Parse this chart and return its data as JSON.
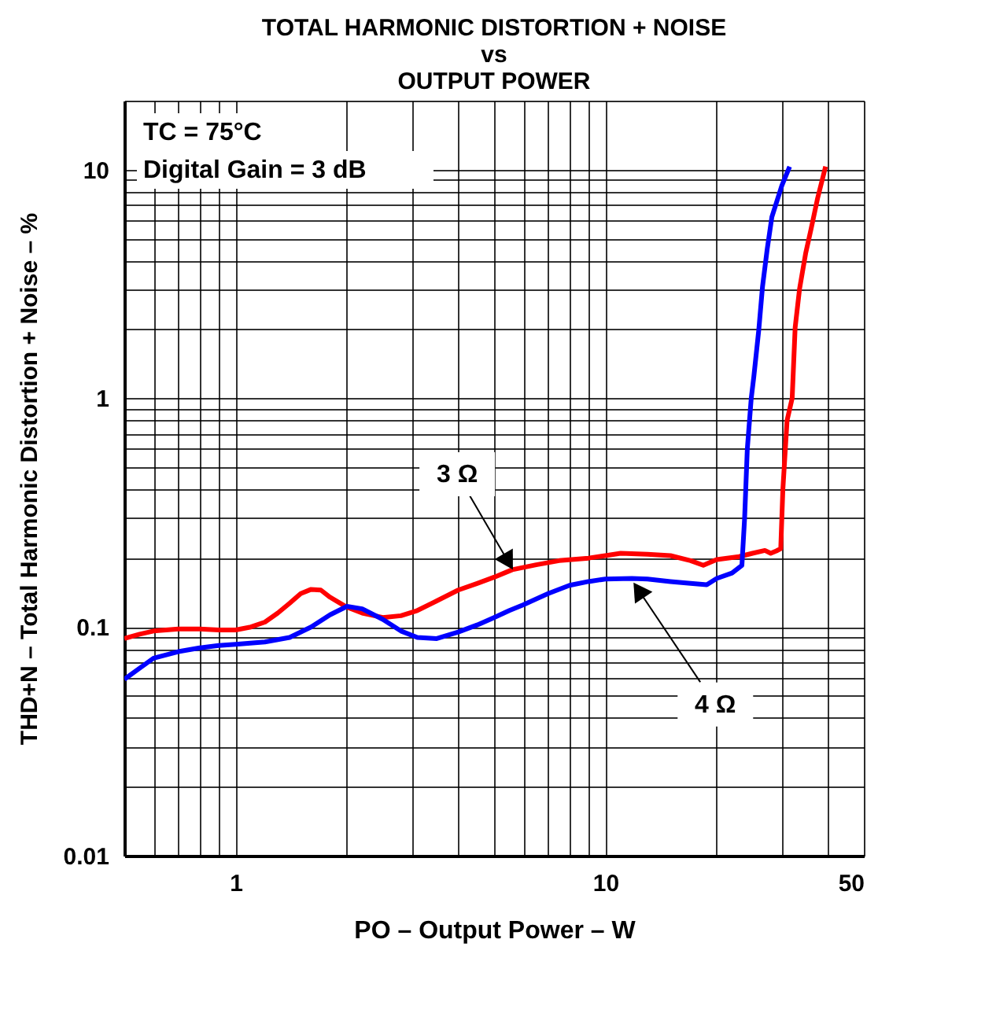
{
  "chart_data": {
    "type": "line",
    "title": "TOTAL HARMONIC DISTORTION + NOISE\nvs\nOUTPUT POWER",
    "xlabel": "PO – Output Power – W",
    "ylabel": "THD+N – Total Harmonic Distortion + Noise – %",
    "log": "xy",
    "grid": true,
    "xlim": [
      0.5,
      50
    ],
    "ylim": [
      0.01,
      20
    ],
    "xticks": [
      {
        "value": 0.5,
        "label": null
      },
      {
        "value": 0.6,
        "label": null
      },
      {
        "value": 0.7,
        "label": null
      },
      {
        "value": 0.8,
        "label": null
      },
      {
        "value": 0.9,
        "label": null
      },
      1,
      {
        "value": 2,
        "label": null
      },
      {
        "value": 3,
        "label": null
      },
      {
        "value": 4,
        "label": null
      },
      {
        "value": 5,
        "label": null
      },
      {
        "value": 6,
        "label": null
      },
      {
        "value": 7,
        "label": null
      },
      {
        "value": 8,
        "label": null
      },
      {
        "value": 9,
        "label": null
      },
      10,
      {
        "value": 20,
        "label": null
      },
      {
        "value": 30,
        "label": null
      },
      {
        "value": 40,
        "label": null
      },
      50
    ],
    "yticks": [
      0.01,
      {
        "value": 0.02,
        "label": null
      },
      {
        "value": 0.03,
        "label": null
      },
      {
        "value": 0.04,
        "label": null
      },
      {
        "value": 0.05,
        "label": null
      },
      {
        "value": 0.06,
        "label": null
      },
      {
        "value": 0.07,
        "label": null
      },
      {
        "value": 0.08,
        "label": null
      },
      {
        "value": 0.09,
        "label": null
      },
      0.1,
      {
        "value": 0.2,
        "label": null
      },
      {
        "value": 0.3,
        "label": null
      },
      {
        "value": 0.4,
        "label": null
      },
      {
        "value": 0.5,
        "label": null
      },
      {
        "value": 0.6,
        "label": null
      },
      {
        "value": 0.7,
        "label": null
      },
      {
        "value": 0.8,
        "label": null
      },
      {
        "value": 0.9,
        "label": null
      },
      1,
      {
        "value": 2,
        "label": null
      },
      {
        "value": 3,
        "label": null
      },
      {
        "value": 4,
        "label": null
      },
      {
        "value": 5,
        "label": null
      },
      {
        "value": 6,
        "label": null
      },
      {
        "value": 7,
        "label": null
      },
      {
        "value": 8,
        "label": null
      },
      {
        "value": 9,
        "label": null
      },
      10,
      {
        "value": 20,
        "label": null
      }
    ],
    "series": [
      {
        "color": "#ff0000",
        "x": [
          0.5,
          0.55,
          0.6,
          0.7,
          0.8,
          0.9,
          1.0,
          1.1,
          1.2,
          1.3,
          1.4,
          1.5,
          1.6,
          1.7,
          1.8,
          2.0,
          2.2,
          2.5,
          2.8,
          3.1,
          3.5,
          4,
          4.5,
          5,
          5.6,
          6.5,
          7.5,
          9,
          10,
          11,
          13,
          15,
          17,
          18.4,
          20,
          23,
          25,
          27,
          28,
          29,
          29.8,
          30.2,
          31,
          32,
          32.6,
          33.5,
          34.8,
          36,
          37.5,
          39.4
        ],
        "values": [
          0.089,
          0.093,
          0.096,
          0.098,
          0.098,
          0.097,
          0.097,
          0.1,
          0.105,
          0.115,
          0.127,
          0.14,
          0.146,
          0.145,
          0.135,
          0.122,
          0.115,
          0.11,
          0.112,
          0.118,
          0.13,
          0.145,
          0.155,
          0.165,
          0.178,
          0.187,
          0.195,
          0.2,
          0.205,
          0.21,
          0.208,
          0.205,
          0.195,
          0.186,
          0.197,
          0.203,
          0.21,
          0.216,
          0.21,
          0.215,
          0.22,
          0.4,
          0.8,
          1.0,
          2.04,
          3.0,
          4.3,
          5.5,
          7.5,
          10.3
        ]
      },
      {
        "color": "#0000ff",
        "x": [
          0.5,
          0.55,
          0.6,
          0.7,
          0.8,
          0.9,
          1.0,
          1.2,
          1.4,
          1.6,
          1.8,
          2.0,
          2.2,
          2.5,
          2.8,
          3.1,
          3.5,
          4,
          4.5,
          5,
          5.5,
          6,
          7,
          8,
          9,
          10,
          11.8,
          13,
          15,
          17,
          18.8,
          20,
          22,
          23.4,
          23.8,
          24.2,
          24.8,
          25.2,
          26,
          26.6,
          27.4,
          28.2,
          30,
          31.5
        ],
        "values": [
          0.059,
          0.066,
          0.073,
          0.078,
          0.081,
          0.083,
          0.084,
          0.086,
          0.09,
          0.1,
          0.113,
          0.123,
          0.12,
          0.108,
          0.096,
          0.09,
          0.089,
          0.095,
          0.102,
          0.11,
          0.118,
          0.125,
          0.14,
          0.152,
          0.158,
          0.162,
          0.163,
          0.162,
          0.158,
          0.155,
          0.153,
          0.163,
          0.172,
          0.186,
          0.3,
          0.6,
          1.0,
          1.24,
          2.0,
          3.07,
          4.5,
          6.2,
          8.5,
          10.3
        ]
      }
    ],
    "annotations": [
      "TC = 75°C",
      "Digital Gain = 3 dB",
      {
        "text": "3 Ω",
        "x": 5.6,
        "y": 0.18
      },
      {
        "text": "4 Ω",
        "x": 11.8,
        "y": 0.16
      }
    ]
  }
}
